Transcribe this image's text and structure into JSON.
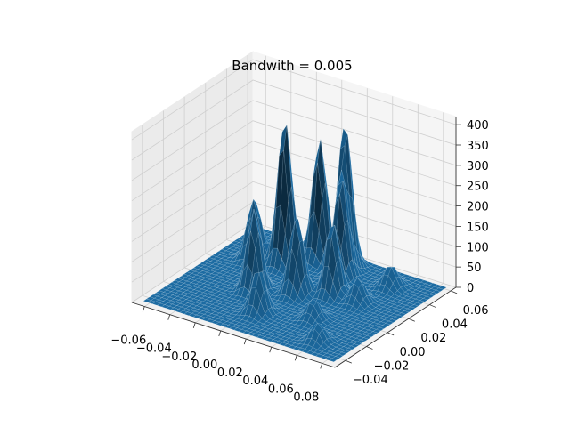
{
  "chart_data": {
    "type": "surface-3d",
    "title": "Bandwith = 0.005",
    "xlabel": "",
    "ylabel": "",
    "zlabel": "",
    "x_ticks": [
      "−0.06",
      "−0.04",
      "−0.02",
      "0.00",
      "0.02",
      "0.04",
      "0.06",
      "0.08"
    ],
    "y_ticks": [
      "−0.04",
      "−0.02",
      "0.00",
      "0.02",
      "0.04",
      "0.06"
    ],
    "z_ticks": [
      "0",
      "50",
      "100",
      "150",
      "200",
      "250",
      "300",
      "350",
      "400"
    ],
    "xlim": [
      -0.07,
      0.09
    ],
    "ylim": [
      -0.05,
      0.065
    ],
    "zlim": [
      0,
      420
    ],
    "grid": true,
    "surface_color": "#1f77b4",
    "peaks": [
      {
        "x": -0.02,
        "y": 0.035,
        "z": 360
      },
      {
        "x": -0.005,
        "y": 0.05,
        "z": 300
      },
      {
        "x": 0.015,
        "y": 0.05,
        "z": 350
      },
      {
        "x": 0.02,
        "y": 0.04,
        "z": 220
      },
      {
        "x": -0.04,
        "y": 0.03,
        "z": 150
      },
      {
        "x": -0.015,
        "y": 0.0,
        "z": 200
      },
      {
        "x": 0.01,
        "y": 0.01,
        "z": 190
      },
      {
        "x": 0.03,
        "y": 0.02,
        "z": 180
      },
      {
        "x": 0.005,
        "y": -0.02,
        "z": 110
      },
      {
        "x": 0.05,
        "y": 0.02,
        "z": 60
      },
      {
        "x": 0.055,
        "y": 0.045,
        "z": 55
      },
      {
        "x": 0.04,
        "y": -0.01,
        "z": 50
      },
      {
        "x": 0.06,
        "y": -0.03,
        "z": 45
      }
    ]
  }
}
